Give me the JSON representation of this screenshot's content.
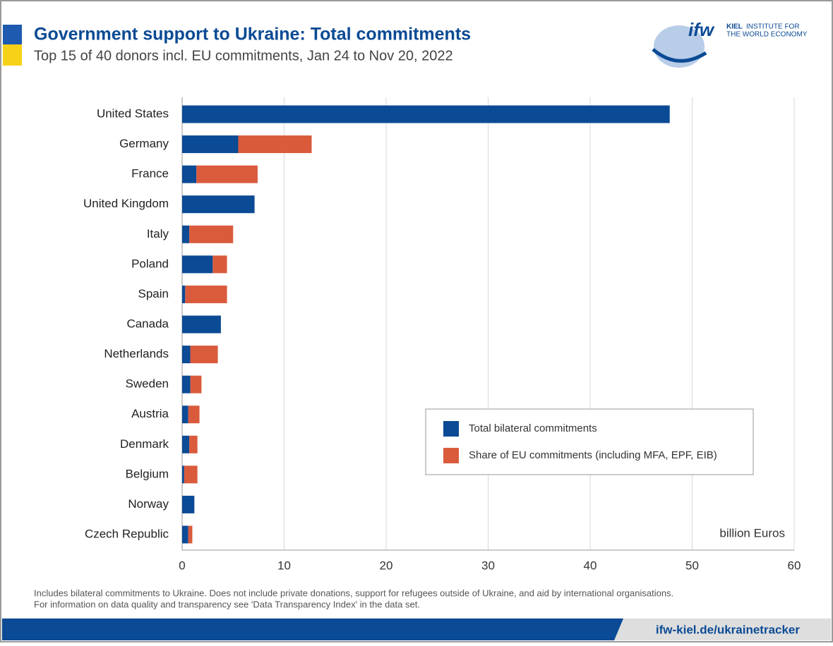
{
  "logo": {
    "mark": "ifw",
    "name_bold": "KIEL",
    "name_lines": [
      "INSTITUTE FOR",
      "THE WORLD ECONOMY"
    ]
  },
  "chart_data": {
    "type": "stacked-barh",
    "title": "Government support to Ukraine: Total commitments",
    "subtitle": "Top 15 of 40 donors incl. EU commitments, Jan 24 to Nov 20, 2022",
    "categories": [
      "United States",
      "Germany",
      "France",
      "United Kingdom",
      "Italy",
      "Poland",
      "Spain",
      "Canada",
      "Netherlands",
      "Sweden",
      "Austria",
      "Denmark",
      "Belgium",
      "Norway",
      "Czech Republic"
    ],
    "series": [
      {
        "name": "Total bilateral commitments",
        "color": "#0b4a94",
        "values": [
          47.8,
          5.5,
          1.4,
          7.1,
          0.7,
          3.0,
          0.3,
          3.8,
          0.8,
          0.8,
          0.6,
          0.7,
          0.2,
          1.2,
          0.6
        ]
      },
      {
        "name": "Share of EU commitments (including MFA, EPF, EIB)",
        "color": "#d95b3c",
        "values": [
          0,
          7.2,
          6.0,
          0,
          4.3,
          1.4,
          4.1,
          0,
          2.7,
          1.1,
          1.1,
          0.8,
          1.3,
          0,
          0.4
        ]
      }
    ],
    "xlim": [
      0,
      60
    ],
    "xticks": [
      0,
      10,
      20,
      30,
      40,
      50,
      60
    ],
    "grid": true,
    "unit_label": "billion Euros",
    "notes": [
      "Includes bilateral commitments to Ukraine. Does not include private donations, support for refugees outside of Ukraine, and aid by international organisations.",
      "For information on data quality and transparency see 'Data Transparency Index' in the data set."
    ],
    "source_url": "ifw-kiel.de/ukrainetracker"
  }
}
